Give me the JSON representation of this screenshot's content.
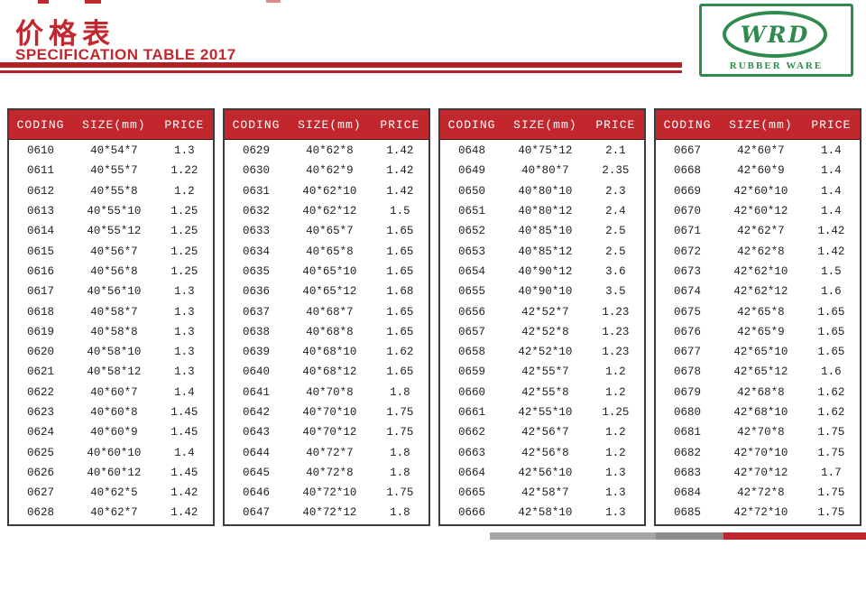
{
  "header": {
    "title_cn": "价格表",
    "subtitle": "SPECIFICATION TABLE 2017"
  },
  "logo": {
    "brand": "WRD",
    "tagline": "RUBBER WARE"
  },
  "columns": [
    "CODING",
    "SIZE(mm)",
    "PRICE"
  ],
  "tables": [
    {
      "rows": [
        [
          "0610",
          "40*54*7",
          "1.3"
        ],
        [
          "0611",
          "40*55*7",
          "1.22"
        ],
        [
          "0612",
          "40*55*8",
          "1.2"
        ],
        [
          "0613",
          "40*55*10",
          "1.25"
        ],
        [
          "0614",
          "40*55*12",
          "1.25"
        ],
        [
          "0615",
          "40*56*7",
          "1.25"
        ],
        [
          "0616",
          "40*56*8",
          "1.25"
        ],
        [
          "0617",
          "40*56*10",
          "1.3"
        ],
        [
          "0618",
          "40*58*7",
          "1.3"
        ],
        [
          "0619",
          "40*58*8",
          "1.3"
        ],
        [
          "0620",
          "40*58*10",
          "1.3"
        ],
        [
          "0621",
          "40*58*12",
          "1.3"
        ],
        [
          "0622",
          "40*60*7",
          "1.4"
        ],
        [
          "0623",
          "40*60*8",
          "1.45"
        ],
        [
          "0624",
          "40*60*9",
          "1.45"
        ],
        [
          "0625",
          "40*60*10",
          "1.4"
        ],
        [
          "0626",
          "40*60*12",
          "1.45"
        ],
        [
          "0627",
          "40*62*5",
          "1.42"
        ],
        [
          "0628",
          "40*62*7",
          "1.42"
        ]
      ]
    },
    {
      "rows": [
        [
          "0629",
          "40*62*8",
          "1.42"
        ],
        [
          "0630",
          "40*62*9",
          "1.42"
        ],
        [
          "0631",
          "40*62*10",
          "1.42"
        ],
        [
          "0632",
          "40*62*12",
          "1.5"
        ],
        [
          "0633",
          "40*65*7",
          "1.65"
        ],
        [
          "0634",
          "40*65*8",
          "1.65"
        ],
        [
          "0635",
          "40*65*10",
          "1.65"
        ],
        [
          "0636",
          "40*65*12",
          "1.68"
        ],
        [
          "0637",
          "40*68*7",
          "1.65"
        ],
        [
          "0638",
          "40*68*8",
          "1.65"
        ],
        [
          "0639",
          "40*68*10",
          "1.62"
        ],
        [
          "0640",
          "40*68*12",
          "1.65"
        ],
        [
          "0641",
          "40*70*8",
          "1.8"
        ],
        [
          "0642",
          "40*70*10",
          "1.75"
        ],
        [
          "0643",
          "40*70*12",
          "1.75"
        ],
        [
          "0644",
          "40*72*7",
          "1.8"
        ],
        [
          "0645",
          "40*72*8",
          "1.8"
        ],
        [
          "0646",
          "40*72*10",
          "1.75"
        ],
        [
          "0647",
          "40*72*12",
          "1.8"
        ]
      ]
    },
    {
      "rows": [
        [
          "0648",
          "40*75*12",
          "2.1"
        ],
        [
          "0649",
          "40*80*7",
          "2.35"
        ],
        [
          "0650",
          "40*80*10",
          "2.3"
        ],
        [
          "0651",
          "40*80*12",
          "2.4"
        ],
        [
          "0652",
          "40*85*10",
          "2.5"
        ],
        [
          "0653",
          "40*85*12",
          "2.5"
        ],
        [
          "0654",
          "40*90*12",
          "3.6"
        ],
        [
          "0655",
          "40*90*10",
          "3.5"
        ],
        [
          "0656",
          "42*52*7",
          "1.23"
        ],
        [
          "0657",
          "42*52*8",
          "1.23"
        ],
        [
          "0658",
          "42*52*10",
          "1.23"
        ],
        [
          "0659",
          "42*55*7",
          "1.2"
        ],
        [
          "0660",
          "42*55*8",
          "1.2"
        ],
        [
          "0661",
          "42*55*10",
          "1.25"
        ],
        [
          "0662",
          "42*56*7",
          "1.2"
        ],
        [
          "0663",
          "42*56*8",
          "1.2"
        ],
        [
          "0664",
          "42*56*10",
          "1.3"
        ],
        [
          "0665",
          "42*58*7",
          "1.3"
        ],
        [
          "0666",
          "42*58*10",
          "1.3"
        ]
      ]
    },
    {
      "rows": [
        [
          "0667",
          "42*60*7",
          "1.4"
        ],
        [
          "0668",
          "42*60*9",
          "1.4"
        ],
        [
          "0669",
          "42*60*10",
          "1.4"
        ],
        [
          "0670",
          "42*60*12",
          "1.4"
        ],
        [
          "0671",
          "42*62*7",
          "1.42"
        ],
        [
          "0672",
          "42*62*8",
          "1.42"
        ],
        [
          "0673",
          "42*62*10",
          "1.5"
        ],
        [
          "0674",
          "42*62*12",
          "1.6"
        ],
        [
          "0675",
          "42*65*8",
          "1.65"
        ],
        [
          "0676",
          "42*65*9",
          "1.65"
        ],
        [
          "0677",
          "42*65*10",
          "1.65"
        ],
        [
          "0678",
          "42*65*12",
          "1.6"
        ],
        [
          "0679",
          "42*68*8",
          "1.62"
        ],
        [
          "0680",
          "42*68*10",
          "1.62"
        ],
        [
          "0681",
          "42*70*8",
          "1.75"
        ],
        [
          "0682",
          "42*70*10",
          "1.75"
        ],
        [
          "0683",
          "42*70*12",
          "1.7"
        ],
        [
          "0684",
          "42*72*8",
          "1.75"
        ],
        [
          "0685",
          "42*72*10",
          "1.75"
        ]
      ]
    }
  ],
  "colors": {
    "accent_red": "#c1272d",
    "logo_green": "#2f8a4e",
    "table_border": "#3c3c3c",
    "bar_gray": "#a6a6a6",
    "bar_dark_gray": "#8c8c8c"
  }
}
